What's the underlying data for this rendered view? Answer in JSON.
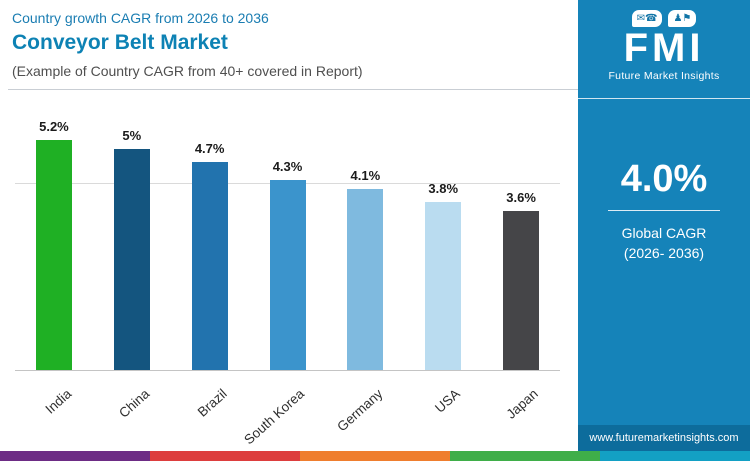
{
  "header": {
    "kicker": "Country growth CAGR from 2026 to 2036",
    "title": "Conveyor Belt Market",
    "subtitle": "(Example of Country CAGR from 40+ covered in Report)"
  },
  "chart_data": {
    "type": "bar",
    "title": "Conveyor Belt Market",
    "subtitle": "Country growth CAGR from 2026 to 2036",
    "categories": [
      "India",
      "China",
      "Brazil",
      "South Korea",
      "Germany",
      "USA",
      "Japan"
    ],
    "values": [
      5.2,
      5.0,
      4.7,
      4.3,
      4.1,
      3.8,
      3.6
    ],
    "value_labels": [
      "5.2%",
      "5%",
      "4.7%",
      "4.3%",
      "4.1%",
      "3.8%",
      "3.6%"
    ],
    "bar_colors": [
      "#1fb024",
      "#14557f",
      "#2273ae",
      "#3b94cc",
      "#7fbadf",
      "#badcf0",
      "#454548"
    ],
    "xlabel": "",
    "ylabel": "",
    "ylim": [
      0,
      5.7
    ],
    "gridline_value": 4.2,
    "legend": "none",
    "grid": "single horizontal gridline"
  },
  "panel": {
    "brand": "FMI",
    "brand_sub": "Future Market Insights",
    "logo_icons": [
      {
        "name": "mail-phone-bubble-icon",
        "glyphs": "✉☎"
      },
      {
        "name": "people-flag-bubble-icon",
        "glyphs": "♟⚑"
      }
    ],
    "stat_value": "4.0%",
    "stat_label_line1": "Global CAGR",
    "stat_label_line2": "(2026- 2036)",
    "website": "www.futuremarketinsights.com",
    "bg_color": "#1583b9",
    "url_bar_color": "#0d6c9c"
  },
  "footer_stripe_colors": [
    "#6d2c85",
    "#dd3e3e",
    "#ef7e2e",
    "#3fae49",
    "#13a0c4"
  ]
}
